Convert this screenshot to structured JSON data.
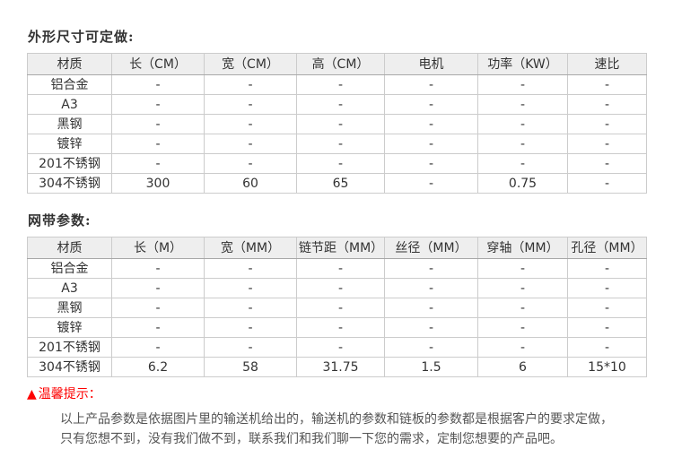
{
  "accent_red": "#fe0000",
  "header_bg": "#eeeeee",
  "border_color": "#cccccc",
  "section1": {
    "heading": "外形尺寸可定做:",
    "table": {
      "headers": [
        "材质",
        "长（CM）",
        "宽（CM）",
        "高（CM）",
        "电机",
        "功率（KW）",
        "速比"
      ],
      "rows": [
        [
          "铝合金",
          "-",
          "-",
          "-",
          "-",
          "-",
          "-"
        ],
        [
          "A3",
          "-",
          "-",
          "-",
          "-",
          "-",
          "-"
        ],
        [
          "黑钢",
          "-",
          "-",
          "-",
          "-",
          "-",
          "-"
        ],
        [
          "镀锌",
          "-",
          "-",
          "-",
          "-",
          "-",
          "-"
        ],
        [
          "201不锈钢",
          "-",
          "-",
          "-",
          "-",
          "-",
          "-"
        ],
        [
          "304不锈钢",
          "300",
          "60",
          "65",
          "-",
          "0.75",
          "-"
        ]
      ]
    }
  },
  "section2": {
    "heading": "网带参数:",
    "table": {
      "headers": [
        "材质",
        "长（M）",
        "宽（MM）",
        "链节距（MM）",
        "丝径（MM）",
        "穿轴（MM）",
        "孔径（MM）"
      ],
      "rows": [
        [
          "铝合金",
          "-",
          "-",
          "-",
          "-",
          "-",
          "-"
        ],
        [
          "A3",
          "-",
          "-",
          "-",
          "-",
          "-",
          "-"
        ],
        [
          "黑钢",
          "-",
          "-",
          "-",
          "-",
          "-",
          "-"
        ],
        [
          "镀锌",
          "-",
          "-",
          "-",
          "-",
          "-",
          "-"
        ],
        [
          "201不锈钢",
          "-",
          "-",
          "-",
          "-",
          "-",
          "-"
        ],
        [
          "304不锈钢",
          "6.2",
          "58",
          "31.75",
          "1.5",
          "6",
          "15*10"
        ]
      ]
    }
  },
  "notice": {
    "icon": "▲",
    "title": "温馨提示：",
    "lines": [
      "以上产品参数是依据图片里的输送机给出的，输送机的参数和链板的参数都是根据客户的要求定做，",
      "只有您想不到，没有我们做不到，联系我们和我们聊一下您的需求，定制您想要的产品吧。"
    ]
  }
}
